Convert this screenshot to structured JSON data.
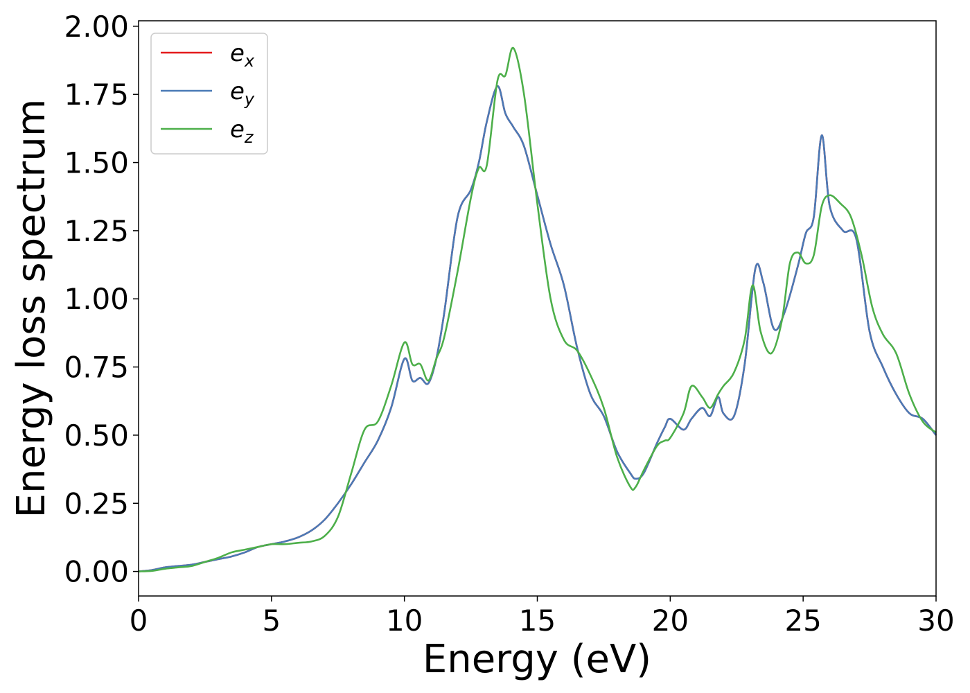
{
  "chart_data": {
    "type": "line",
    "title": "",
    "xlabel": "Energy (eV)",
    "ylabel": "Energy loss spectrum",
    "xlim": [
      0,
      30
    ],
    "ylim": [
      -0.09,
      2.02
    ],
    "grid": false,
    "legend_position": "top-left",
    "x_ticks": [
      "0",
      "5",
      "10",
      "15",
      "20",
      "25",
      "30"
    ],
    "y_ticks": [
      "0.00",
      "0.25",
      "0.50",
      "0.75",
      "1.00",
      "1.25",
      "1.50",
      "1.75",
      "2.00"
    ],
    "series": [
      {
        "name": "e_x",
        "label_base": "e",
        "label_sub": "x",
        "color": "#e41a1c",
        "x": [
          0,
          0.5,
          1,
          1.5,
          2,
          2.5,
          3,
          3.5,
          4,
          4.5,
          5,
          5.5,
          6,
          6.5,
          7,
          7.5,
          8,
          8.5,
          9,
          9.5,
          10,
          10.3,
          10.6,
          10.9,
          11.2,
          11.5,
          12,
          12.5,
          12.8,
          13.1,
          13.5,
          13.8,
          14.1,
          14.5,
          15,
          15.5,
          16,
          16.5,
          17,
          17.5,
          18,
          18.5,
          18.7,
          19,
          19.5,
          19.8,
          20,
          20.5,
          20.8,
          21.2,
          21.5,
          21.8,
          22,
          22.4,
          22.8,
          23.2,
          23.5,
          23.9,
          24.3,
          24.8,
          25.1,
          25.4,
          25.7,
          26,
          26.5,
          27,
          27.5,
          28,
          28.5,
          29,
          29.5,
          30
        ],
        "y": [
          0,
          0.005,
          0.015,
          0.02,
          0.025,
          0.035,
          0.045,
          0.055,
          0.07,
          0.09,
          0.1,
          0.11,
          0.125,
          0.15,
          0.19,
          0.25,
          0.32,
          0.4,
          0.48,
          0.6,
          0.78,
          0.7,
          0.71,
          0.69,
          0.78,
          0.95,
          1.3,
          1.4,
          1.5,
          1.65,
          1.78,
          1.68,
          1.63,
          1.56,
          1.38,
          1.2,
          1.05,
          0.82,
          0.65,
          0.57,
          0.44,
          0.36,
          0.34,
          0.36,
          0.47,
          0.53,
          0.56,
          0.52,
          0.56,
          0.6,
          0.57,
          0.64,
          0.58,
          0.57,
          0.76,
          1.11,
          1.06,
          0.89,
          0.95,
          1.12,
          1.24,
          1.3,
          1.6,
          1.34,
          1.25,
          1.22,
          0.88,
          0.75,
          0.65,
          0.58,
          0.56,
          0.5
        ]
      },
      {
        "name": "e_y",
        "label_base": "e",
        "label_sub": "y",
        "color": "#4a7ab6",
        "x": [
          0,
          0.5,
          1,
          1.5,
          2,
          2.5,
          3,
          3.5,
          4,
          4.5,
          5,
          5.5,
          6,
          6.5,
          7,
          7.5,
          8,
          8.5,
          9,
          9.5,
          10,
          10.3,
          10.6,
          10.9,
          11.2,
          11.5,
          12,
          12.5,
          12.8,
          13.1,
          13.5,
          13.8,
          14.1,
          14.5,
          15,
          15.5,
          16,
          16.5,
          17,
          17.5,
          18,
          18.5,
          18.7,
          19,
          19.5,
          19.8,
          20,
          20.5,
          20.8,
          21.2,
          21.5,
          21.8,
          22,
          22.4,
          22.8,
          23.2,
          23.5,
          23.9,
          24.3,
          24.8,
          25.1,
          25.4,
          25.7,
          26,
          26.5,
          27,
          27.5,
          28,
          28.5,
          29,
          29.5,
          30
        ],
        "y": [
          0,
          0.005,
          0.015,
          0.02,
          0.025,
          0.035,
          0.045,
          0.055,
          0.07,
          0.09,
          0.1,
          0.11,
          0.125,
          0.15,
          0.19,
          0.25,
          0.32,
          0.4,
          0.48,
          0.6,
          0.78,
          0.7,
          0.71,
          0.69,
          0.78,
          0.95,
          1.3,
          1.4,
          1.5,
          1.65,
          1.78,
          1.68,
          1.63,
          1.56,
          1.38,
          1.2,
          1.05,
          0.82,
          0.65,
          0.57,
          0.44,
          0.36,
          0.34,
          0.36,
          0.47,
          0.53,
          0.56,
          0.52,
          0.56,
          0.6,
          0.57,
          0.64,
          0.58,
          0.57,
          0.76,
          1.11,
          1.06,
          0.89,
          0.95,
          1.12,
          1.24,
          1.3,
          1.6,
          1.34,
          1.25,
          1.22,
          0.88,
          0.75,
          0.65,
          0.58,
          0.56,
          0.5
        ]
      },
      {
        "name": "e_z",
        "label_base": "e",
        "label_sub": "z",
        "color": "#4daf4a",
        "x": [
          0,
          0.5,
          1,
          1.5,
          2,
          2.5,
          3,
          3.5,
          4,
          4.5,
          5,
          5.5,
          6,
          6.5,
          7,
          7.5,
          8,
          8.5,
          9,
          9.5,
          10,
          10.3,
          10.6,
          10.9,
          11.2,
          11.5,
          12,
          12.5,
          12.8,
          13.1,
          13.5,
          13.8,
          14.1,
          14.5,
          15,
          15.5,
          16,
          16.5,
          17,
          17.5,
          18,
          18.5,
          18.7,
          19,
          19.5,
          19.8,
          20,
          20.5,
          20.8,
          21.2,
          21.5,
          21.8,
          22,
          22.4,
          22.8,
          23.1,
          23.4,
          23.8,
          24.2,
          24.5,
          24.8,
          25.1,
          25.4,
          25.7,
          26,
          26.4,
          26.8,
          27.2,
          27.6,
          28,
          28.5,
          29,
          29.5,
          30
        ],
        "y": [
          0,
          0.002,
          0.01,
          0.015,
          0.02,
          0.035,
          0.05,
          0.07,
          0.08,
          0.09,
          0.1,
          0.1,
          0.105,
          0.11,
          0.13,
          0.2,
          0.36,
          0.52,
          0.55,
          0.68,
          0.84,
          0.76,
          0.76,
          0.7,
          0.78,
          0.86,
          1.1,
          1.37,
          1.48,
          1.49,
          1.8,
          1.82,
          1.92,
          1.75,
          1.35,
          1.0,
          0.85,
          0.81,
          0.72,
          0.6,
          0.42,
          0.31,
          0.31,
          0.37,
          0.46,
          0.48,
          0.49,
          0.58,
          0.68,
          0.64,
          0.6,
          0.65,
          0.68,
          0.73,
          0.85,
          1.05,
          0.88,
          0.8,
          0.92,
          1.13,
          1.17,
          1.13,
          1.16,
          1.34,
          1.38,
          1.35,
          1.3,
          1.16,
          0.97,
          0.87,
          0.8,
          0.65,
          0.55,
          0.51
        ]
      }
    ]
  }
}
